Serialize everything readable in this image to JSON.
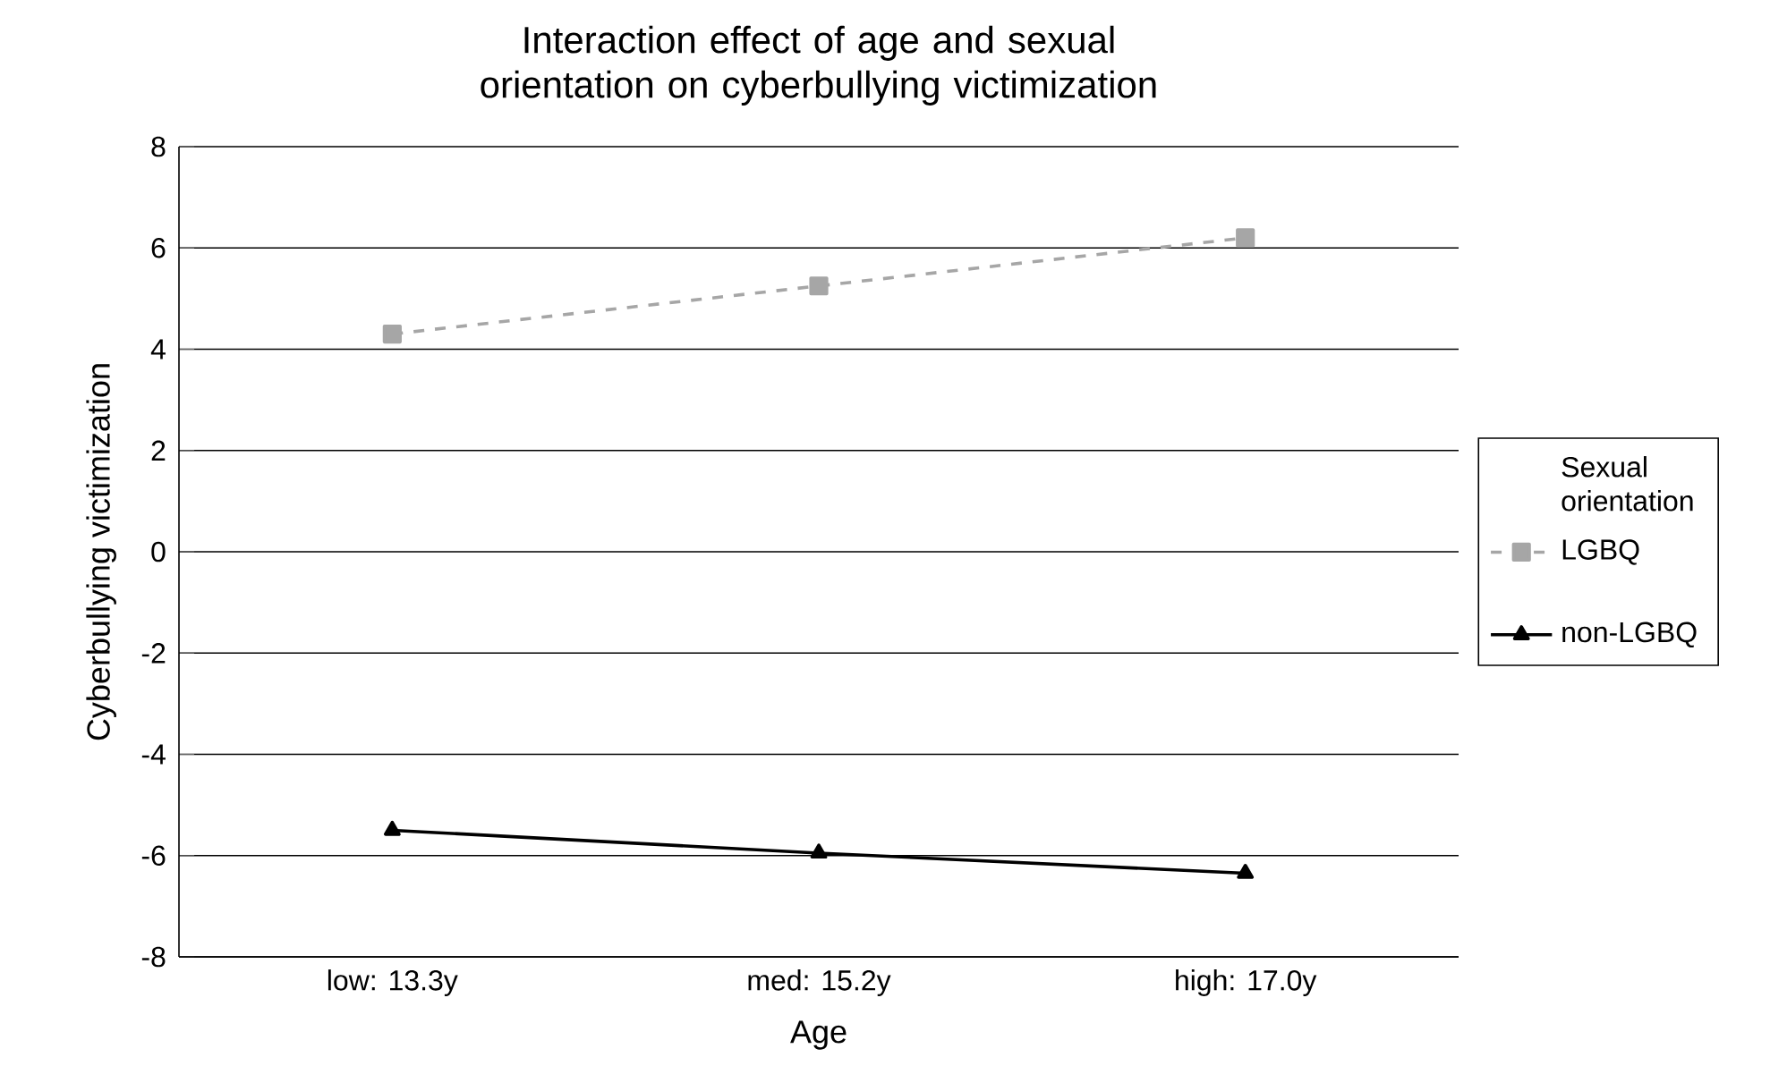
{
  "chart_data": {
    "type": "line",
    "title": "Interaction effect of age and sexual orientation on cyberbullying victimization",
    "xlabel": "Age",
    "ylabel": "Cyberbullying victimization",
    "legend_title": "Sexual orientation",
    "categories": [
      "low: 13.3y",
      "med: 15.2y",
      "high: 17.0y"
    ],
    "series": [
      {
        "name": "LGBQ",
        "color": "#a6a6a6",
        "values": [
          4.3,
          5.25,
          6.2
        ],
        "marker": "square",
        "line_style": "dashed"
      },
      {
        "name": "non-LGBQ",
        "color": "#000000",
        "values": [
          -5.5,
          -5.95,
          -6.35
        ],
        "marker": "triangle",
        "line_style": "solid"
      }
    ],
    "ylim": [
      -8,
      8
    ],
    "yticks": [
      -8,
      -6,
      -4,
      -2,
      0,
      2,
      4,
      6,
      8
    ],
    "grid": "y",
    "legend": "right"
  }
}
